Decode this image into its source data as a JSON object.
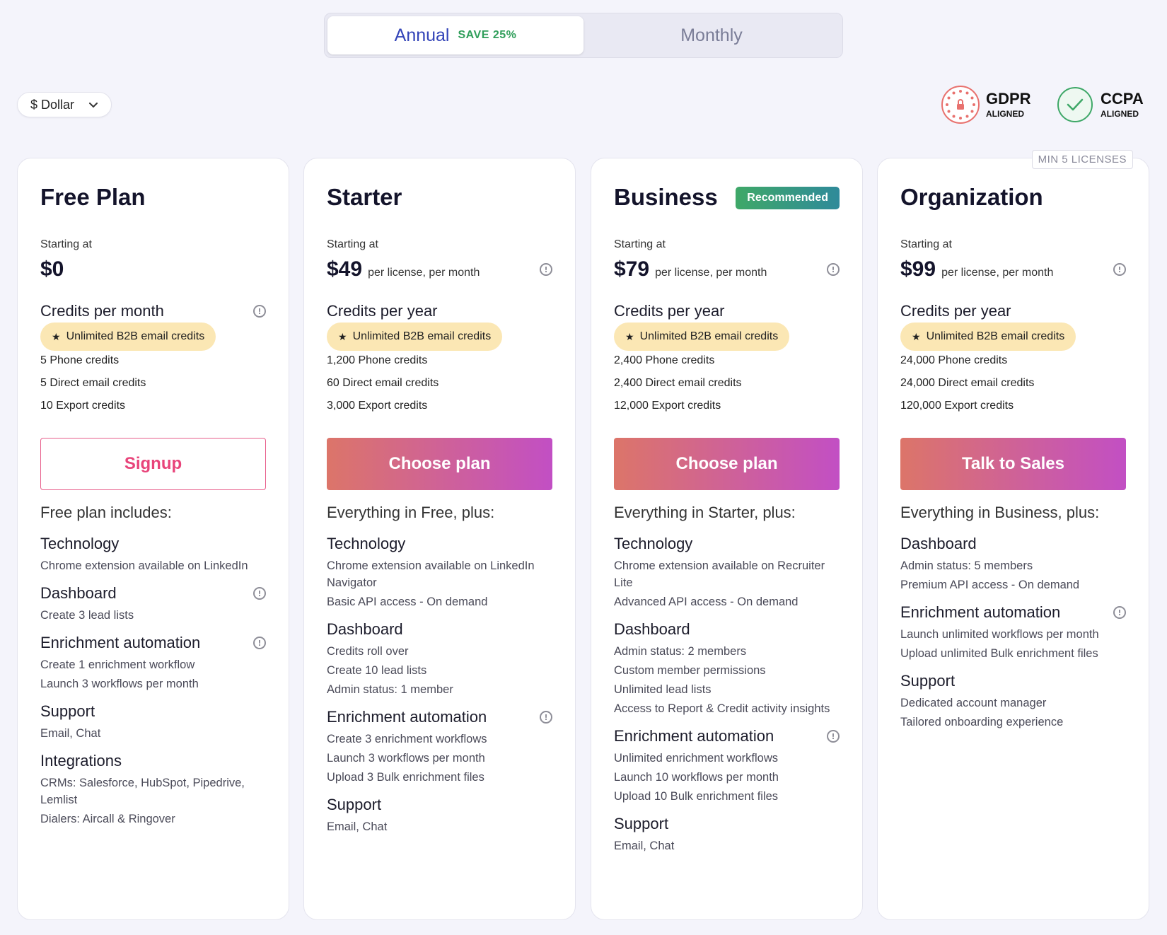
{
  "billing_toggle": {
    "annual_label": "Annual",
    "save_label": "SAVE 25%",
    "monthly_label": "Monthly"
  },
  "currency": {
    "label": "$ Dollar"
  },
  "compliance": [
    {
      "name": "GDPR",
      "sub": "ALIGNED",
      "color": "#e8716e"
    },
    {
      "name": "CCPA",
      "sub": "ALIGNED",
      "color": "#3fa868"
    }
  ],
  "plans": [
    {
      "name": "Free Plan",
      "badge": "",
      "min_label": "",
      "starting": "Starting at",
      "price": "$0",
      "per": "",
      "credits_title": "Credits per month",
      "pill": "Unlimited B2B email credits",
      "credits": [
        "5 Phone credits",
        "5 Direct email credits",
        "10 Export credits"
      ],
      "cta": "Signup",
      "cta_style": "outline",
      "includes": "Free plan includes:",
      "sections": [
        {
          "title": "Technology",
          "info": false,
          "items": [
            "Chrome extension available on LinkedIn"
          ]
        },
        {
          "title": "Dashboard",
          "info": true,
          "items": [
            "Create 3 lead lists"
          ]
        },
        {
          "title": "Enrichment automation",
          "info": true,
          "items": [
            "Create 1 enrichment workflow",
            "Launch 3 workflows per month"
          ]
        },
        {
          "title": "Support",
          "info": false,
          "items": [
            "Email, Chat"
          ]
        },
        {
          "title": "Integrations",
          "info": false,
          "items": [
            "CRMs: Salesforce, HubSpot, Pipedrive, Lemlist",
            "Dialers: Aircall & Ringover"
          ]
        }
      ]
    },
    {
      "name": "Starter",
      "badge": "",
      "min_label": "",
      "starting": "Starting at",
      "price": "$49",
      "per": "per license, per month",
      "credits_title": "Credits per year",
      "pill": "Unlimited B2B email credits",
      "credits": [
        "1,200 Phone credits",
        "60 Direct email credits",
        "3,000 Export credits"
      ],
      "cta": "Choose plan",
      "cta_style": "grad",
      "includes": "Everything in Free, plus:",
      "sections": [
        {
          "title": "Technology",
          "info": false,
          "items": [
            "Chrome extension available on LinkedIn Navigator",
            "Basic API access - On demand"
          ]
        },
        {
          "title": "Dashboard",
          "info": false,
          "items": [
            "Credits roll over",
            "Create 10 lead lists",
            "Admin status: 1 member"
          ]
        },
        {
          "title": "Enrichment automation",
          "info": true,
          "items": [
            "Create 3 enrichment workflows",
            "Launch 3 workflows per month",
            "Upload 3 Bulk enrichment files"
          ]
        },
        {
          "title": "Support",
          "info": false,
          "items": [
            "Email, Chat"
          ]
        }
      ]
    },
    {
      "name": "Business",
      "badge": "Recommended",
      "min_label": "",
      "starting": "Starting at",
      "price": "$79",
      "per": "per license, per month",
      "credits_title": "Credits per year",
      "pill": "Unlimited B2B email credits",
      "credits": [
        "2,400 Phone credits",
        "2,400 Direct email credits",
        "12,000 Export credits"
      ],
      "cta": "Choose plan",
      "cta_style": "grad",
      "includes": "Everything in Starter, plus:",
      "sections": [
        {
          "title": "Technology",
          "info": false,
          "items": [
            "Chrome extension available on Recruiter Lite",
            "Advanced API access - On demand"
          ]
        },
        {
          "title": "Dashboard",
          "info": false,
          "items": [
            "Admin status: 2 members",
            "Custom member permissions",
            "Unlimited lead lists",
            "Access to Report & Credit activity insights"
          ]
        },
        {
          "title": "Enrichment automation",
          "info": true,
          "items": [
            "Unlimited enrichment workflows",
            "Launch 10 workflows per month",
            "Upload 10 Bulk enrichment files"
          ]
        },
        {
          "title": "Support",
          "info": false,
          "items": [
            "Email, Chat"
          ]
        }
      ]
    },
    {
      "name": "Organization",
      "badge": "",
      "min_label": "MIN 5 LICENSES",
      "starting": "Starting at",
      "price": "$99",
      "per": "per license, per month",
      "credits_title": "Credits per year",
      "pill": "Unlimited B2B email credits",
      "credits": [
        "24,000 Phone credits",
        "24,000 Direct email credits",
        "120,000 Export credits"
      ],
      "cta": "Talk to Sales",
      "cta_style": "grad",
      "includes": "Everything in Business, plus:",
      "sections": [
        {
          "title": "Dashboard",
          "info": false,
          "items": [
            "Admin status: 5 members",
            "Premium API access - On demand"
          ]
        },
        {
          "title": "Enrichment automation",
          "info": true,
          "items": [
            "Launch unlimited workflows per month",
            "Upload unlimited Bulk enrichment files"
          ]
        },
        {
          "title": "Support",
          "info": false,
          "items": [
            "Dedicated account manager",
            "Tailored onboarding experience"
          ]
        }
      ]
    }
  ]
}
